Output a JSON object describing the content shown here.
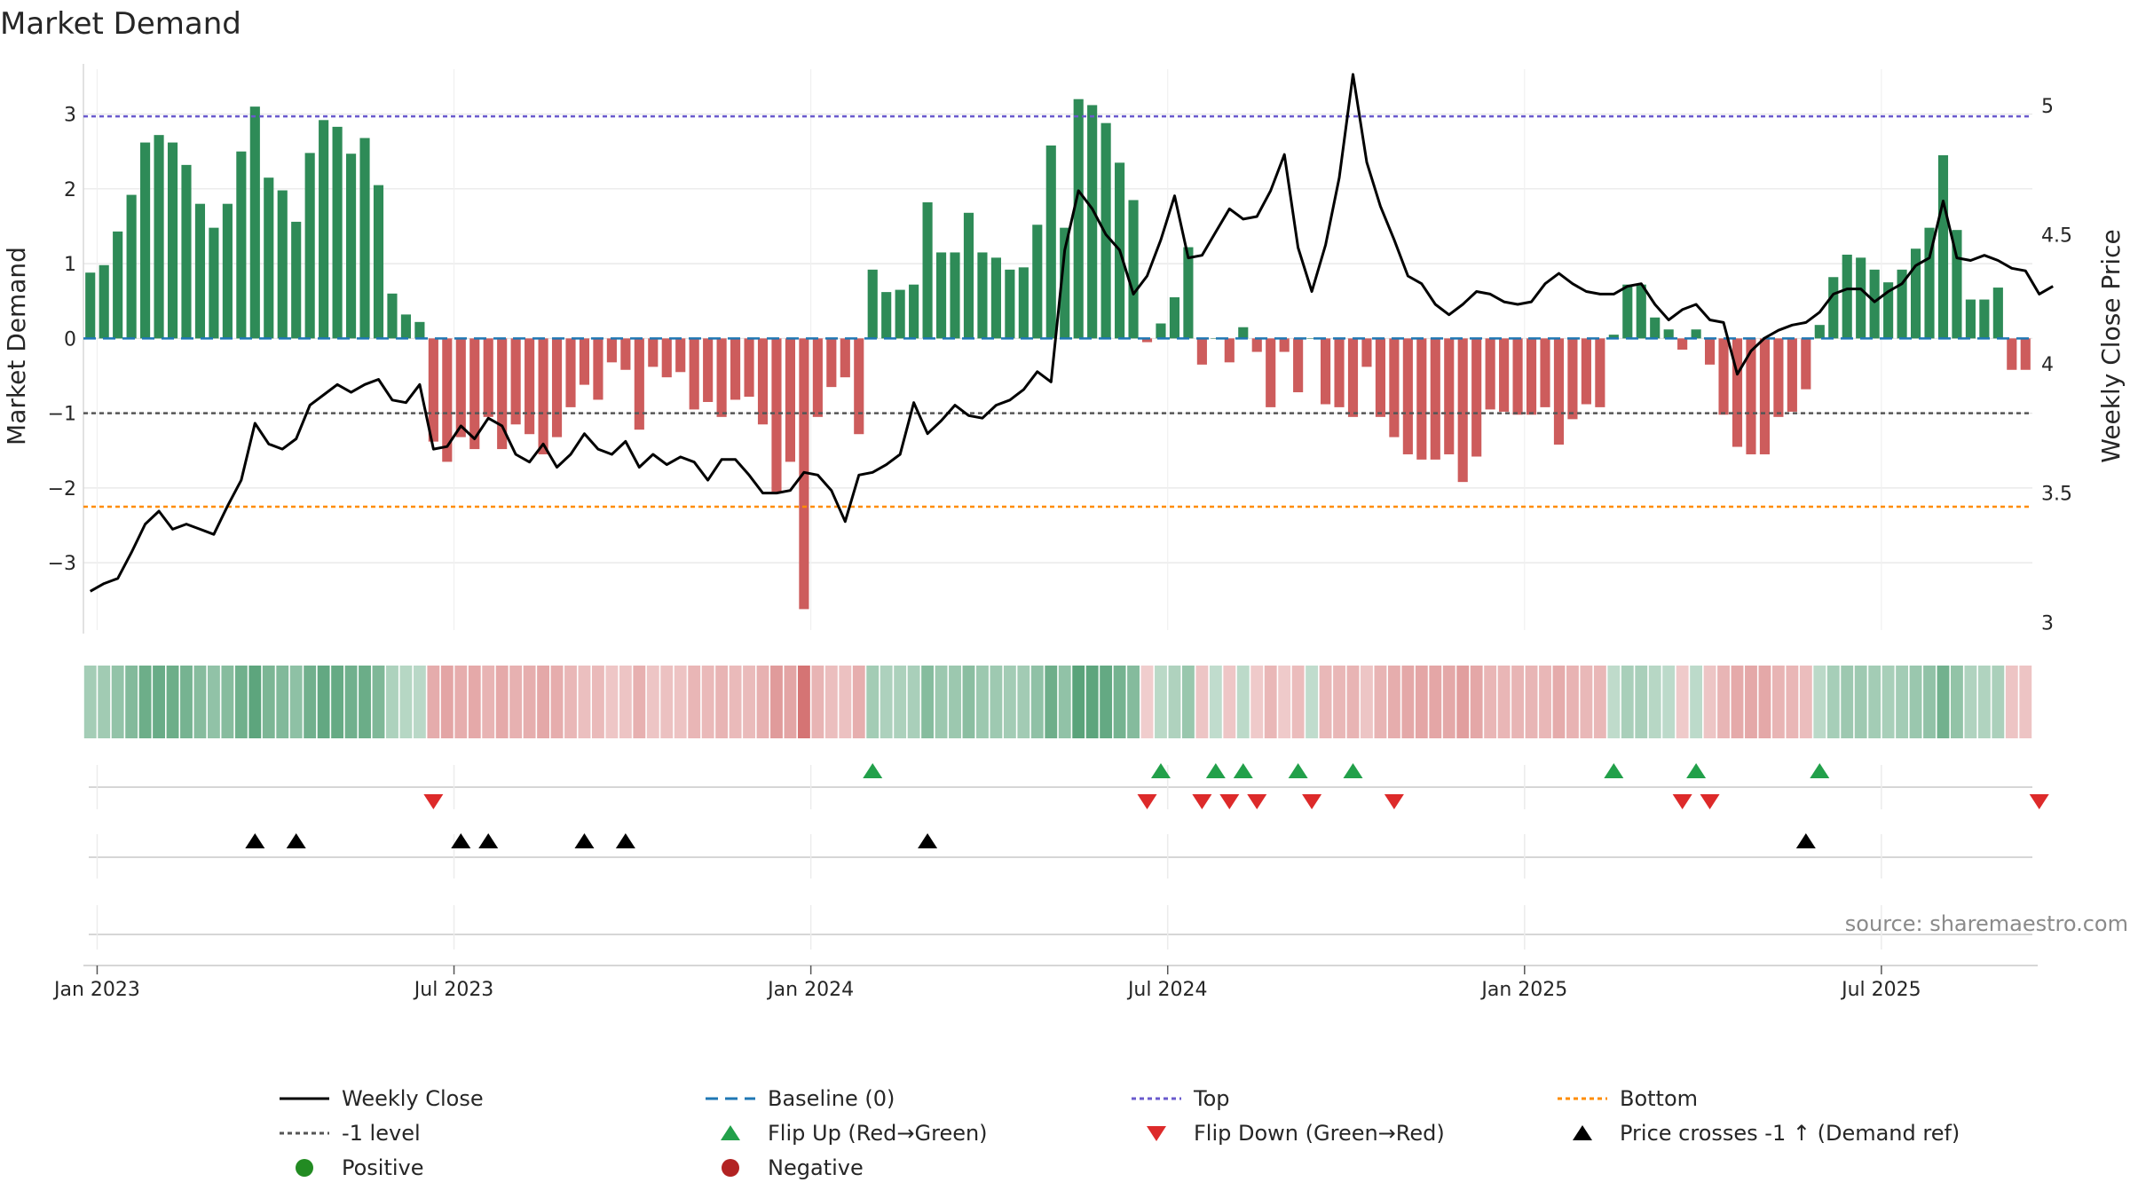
{
  "chart_data": {
    "type": "bar+line",
    "title": "Market Demand",
    "ylabel_left": "Market Demand",
    "ylabel_right": "Weekly Close Price",
    "y_left_range": [
      -3.9,
      3.6
    ],
    "y_left_ticks": [
      "3",
      "2",
      "1",
      "0",
      "−1",
      "−2",
      "−3"
    ],
    "y_left_tick_values": [
      3,
      2,
      1,
      0,
      -1,
      -2,
      -3
    ],
    "y_right_range": [
      2.97,
      5.14
    ],
    "y_right_ticks": [
      "5",
      "4.5",
      "4",
      "3.5",
      "3"
    ],
    "y_right_tick_values": [
      5,
      4.5,
      4,
      3.5,
      3
    ],
    "x_tick_labels": [
      "Jan 2023",
      "Jul 2023",
      "Jan 2024",
      "Jul 2024",
      "Jan 2025",
      "Jul 2025"
    ],
    "x_tick_weeks": [
      1,
      27,
      53,
      79,
      105,
      131
    ],
    "reference_lines": {
      "baseline": 0,
      "top": 2.97,
      "minus_one": -1,
      "bottom": -2.25
    },
    "demand": [
      0.88,
      0.98,
      1.43,
      1.92,
      2.62,
      2.72,
      2.62,
      2.32,
      1.8,
      1.48,
      1.8,
      2.5,
      3.1,
      2.15,
      1.98,
      1.56,
      2.48,
      2.92,
      2.83,
      2.47,
      2.68,
      2.05,
      0.6,
      0.32,
      0.22,
      -1.38,
      -1.65,
      -1.32,
      -1.48,
      -1.05,
      -1.48,
      -1.15,
      -1.28,
      -1.55,
      -1.32,
      -0.92,
      -0.62,
      -0.82,
      -0.32,
      -0.42,
      -1.22,
      -0.38,
      -0.52,
      -0.45,
      -0.95,
      -0.85,
      -1.05,
      -0.82,
      -0.78,
      -1.15,
      -2.05,
      -1.65,
      -3.62,
      -1.05,
      -0.65,
      -0.52,
      -1.28,
      0.92,
      0.62,
      0.65,
      0.72,
      1.82,
      1.15,
      1.15,
      1.68,
      1.15,
      1.08,
      0.92,
      0.95,
      1.52,
      2.58,
      1.48,
      3.2,
      3.12,
      2.88,
      2.35,
      1.85,
      -0.05,
      0.2,
      0.55,
      1.22,
      -0.35,
      0,
      -0.32,
      0.15,
      -0.18,
      -0.92,
      -0.18,
      -0.72,
      0,
      -0.88,
      -0.92,
      -1.05,
      -0.38,
      -1.05,
      -1.32,
      -1.55,
      -1.62,
      -1.62,
      -1.55,
      -1.92,
      -1.58,
      -0.95,
      -0.98,
      -1.02,
      -1.02,
      -0.92,
      -1.42,
      -1.08,
      -0.88,
      -0.92,
      0.05,
      0.72,
      0.72,
      0.28,
      0.12,
      -0.15,
      0.12,
      -0.35,
      -1.02,
      -1.45,
      -1.55,
      -1.55,
      -1.05,
      -0.98,
      -0.68,
      0.18,
      0.82,
      1.12,
      1.08,
      0.92,
      0.75,
      0.92,
      1.2,
      1.48,
      2.45,
      1.45,
      0.52,
      0.52,
      0.68,
      -0.42,
      -0.42
    ],
    "weekly_close": [
      3.12,
      3.15,
      3.17,
      3.27,
      3.38,
      3.43,
      3.36,
      3.38,
      3.36,
      3.34,
      3.45,
      3.55,
      3.77,
      3.69,
      3.67,
      3.71,
      3.84,
      3.88,
      3.92,
      3.89,
      3.92,
      3.94,
      3.86,
      3.85,
      3.92,
      3.67,
      3.68,
      3.76,
      3.71,
      3.79,
      3.76,
      3.65,
      3.62,
      3.69,
      3.6,
      3.65,
      3.73,
      3.67,
      3.65,
      3.7,
      3.6,
      3.65,
      3.61,
      3.64,
      3.62,
      3.55,
      3.63,
      3.63,
      3.57,
      3.5,
      3.5,
      3.51,
      3.58,
      3.57,
      3.51,
      3.39,
      3.57,
      3.58,
      3.61,
      3.65,
      3.85,
      3.73,
      3.78,
      3.84,
      3.8,
      3.79,
      3.84,
      3.86,
      3.9,
      3.97,
      3.93,
      4.44,
      4.67,
      4.6,
      4.5,
      4.44,
      4.27,
      4.34,
      4.48,
      4.65,
      4.41,
      4.42,
      4.51,
      4.6,
      4.56,
      4.57,
      4.67,
      4.81,
      4.45,
      4.28,
      4.46,
      4.72,
      5.12,
      4.78,
      4.61,
      4.48,
      4.34,
      4.31,
      4.23,
      4.19,
      4.23,
      4.28,
      4.27,
      4.24,
      4.23,
      4.24,
      4.31,
      4.35,
      4.31,
      4.28,
      4.27,
      4.27,
      4.3,
      4.31,
      4.23,
      4.17,
      4.21,
      4.23,
      4.17,
      4.16,
      3.96,
      4.05,
      4.1,
      4.13,
      4.15,
      4.16,
      4.2,
      4.27,
      4.29,
      4.29,
      4.24,
      4.28,
      4.31,
      4.38,
      4.41,
      4.63,
      4.41,
      4.4,
      4.42,
      4.4,
      4.37,
      4.36,
      4.27,
      4.3
    ],
    "flip_up_weeks": [
      57,
      78,
      82,
      84,
      88,
      92,
      111,
      117,
      126
    ],
    "flip_down_weeks": [
      25,
      77,
      81,
      83,
      85,
      89,
      95,
      116,
      118,
      142
    ],
    "price_cross_weeks": [
      12,
      15,
      27,
      29,
      36,
      39,
      61,
      125
    ],
    "legend": [
      {
        "key": "weekly_close",
        "label": "Weekly Close"
      },
      {
        "key": "baseline",
        "label": "Baseline (0)"
      },
      {
        "key": "top",
        "label": "Top"
      },
      {
        "key": "bottom",
        "label": "Bottom"
      },
      {
        "key": "minus_one",
        "label": "-1 level"
      },
      {
        "key": "flip_up",
        "label": "Flip Up (Red→Green)"
      },
      {
        "key": "flip_down",
        "label": "Flip Down (Green→Red)"
      },
      {
        "key": "price_cross",
        "label": "Price crosses -1 ↑ (Demand ref)"
      },
      {
        "key": "positive",
        "label": "Positive"
      },
      {
        "key": "negative",
        "label": "Negative"
      }
    ],
    "source": "source: sharemaestro.com"
  },
  "colors": {
    "positive": "#2e8b57",
    "negative": "#cd5c5c",
    "line": "#000000",
    "baseline": "#1f77b4",
    "top": "#6a5acd",
    "minus_one": "#555555",
    "bottom": "#ff8c00",
    "flip_up": "#22a04a",
    "flip_down": "#dd2a2a",
    "price_cross": "#000000",
    "legend_positive": "#228b22",
    "legend_negative": "#b22222"
  }
}
